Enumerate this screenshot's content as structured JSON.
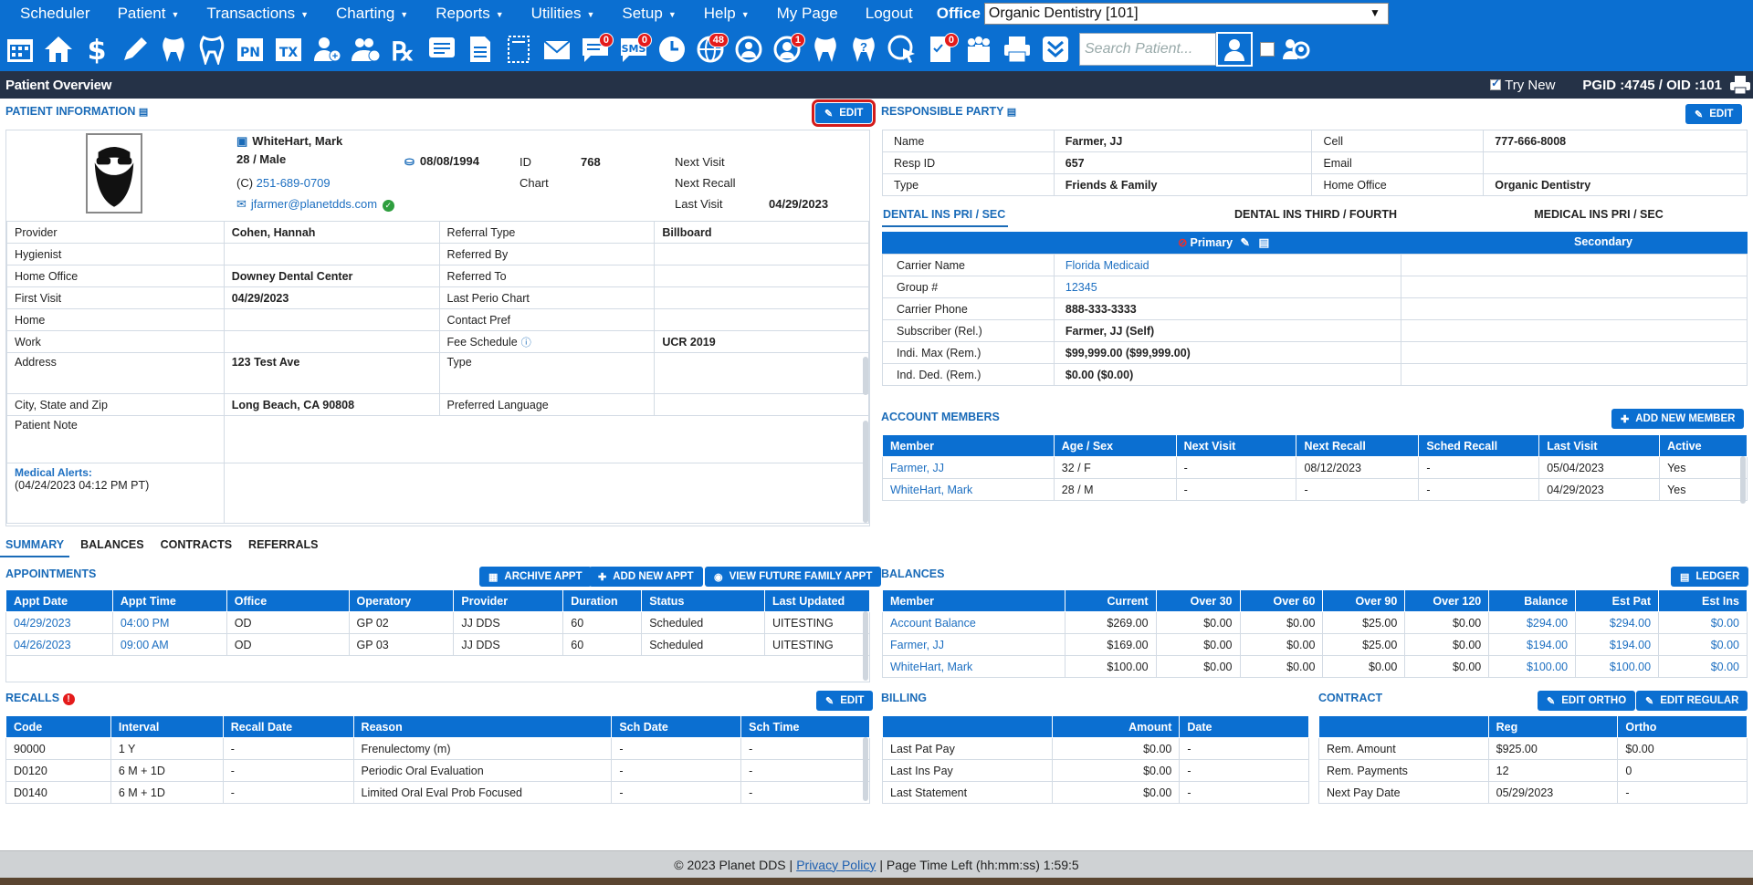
{
  "menu": {
    "items": [
      {
        "label": "Scheduler",
        "caret": false
      },
      {
        "label": "Patient",
        "caret": true
      },
      {
        "label": "Transactions",
        "caret": true
      },
      {
        "label": "Charting",
        "caret": true
      },
      {
        "label": "Reports",
        "caret": true
      },
      {
        "label": "Utilities",
        "caret": true
      },
      {
        "label": "Setup",
        "caret": true
      },
      {
        "label": "Help",
        "caret": true
      },
      {
        "label": "My Page",
        "caret": false
      },
      {
        "label": "Logout",
        "caret": false
      }
    ],
    "office_label": "Office",
    "office_value": "Organic Dentistry [101]"
  },
  "toolbar": {
    "icons": [
      "calendar-icon",
      "home-icon",
      "dollar-icon",
      "pencil-icon",
      "tooth-icon",
      "tooth-outline-icon",
      "pn-icon",
      "tx-icon",
      "add-patient-icon",
      "add-family-icon",
      "rx-icon",
      "notes-icon",
      "document-icon",
      "scan-icon",
      "envelope-icon",
      "message-icon",
      "sms-icon",
      "clock-icon",
      "globe-icon",
      "globe-user-icon",
      "agent-icon",
      "tooth-chart-icon",
      "tooth-question-icon",
      "web-cursor-icon",
      "checklist-icon",
      "family-icon",
      "printer-icon",
      "chevron-down-double-icon"
    ],
    "badges": {
      "message-icon": "0",
      "sms-icon": "0",
      "globe-icon": "48",
      "agent-icon": "1",
      "checklist-icon": "0"
    },
    "search_placeholder": "Search Patient..."
  },
  "titlebar": {
    "title": "Patient Overview",
    "try_new": "Try New",
    "pgid": "PGID :4745 / OID :101"
  },
  "patient_info": {
    "title": "PATIENT INFORMATION",
    "edit": "EDIT",
    "name": "WhiteHart, Mark",
    "age_sex": "28 / Male",
    "dob": "08/08/1994",
    "phone_prefix": "(C)",
    "phone": "251-689-0709",
    "email": "jfarmer@planetdds.com",
    "id_label": "ID",
    "id_value": "768",
    "chart_label": "Chart",
    "next_visit_label": "Next Visit",
    "next_recall_label": "Next Recall",
    "last_visit_label": "Last Visit",
    "last_visit_value": "04/29/2023",
    "rows": [
      [
        "Provider",
        "Cohen, Hannah",
        "Referral Type",
        "Billboard"
      ],
      [
        "Hygienist",
        "",
        "Referred By",
        ""
      ],
      [
        "Home Office",
        "Downey Dental Center",
        "Referred To",
        ""
      ],
      [
        "First Visit",
        "04/29/2023",
        "Last Perio Chart",
        ""
      ],
      [
        "Home",
        "",
        "Contact Pref",
        ""
      ],
      [
        "Work",
        "",
        "Fee Schedule",
        "UCR 2019"
      ],
      [
        "Address",
        "123 Test Ave",
        "Type",
        ""
      ],
      [
        "City, State and Zip",
        "Long Beach, CA 90808",
        "Preferred Language",
        ""
      ]
    ],
    "patient_note_label": "Patient Note",
    "medical_alerts_label": "Medical Alerts:",
    "medical_alerts_date": "(04/24/2023 04:12 PM PT)"
  },
  "responsible_party": {
    "title": "RESPONSIBLE PARTY",
    "edit": "EDIT",
    "rows": [
      [
        "Name",
        "Farmer, JJ",
        "Cell",
        "777-666-8008"
      ],
      [
        "Resp ID",
        "657",
        "Email",
        ""
      ],
      [
        "Type",
        "Friends & Family",
        "Home Office",
        "Organic Dentistry"
      ]
    ]
  },
  "insurance": {
    "tabs": [
      "DENTAL INS PRI / SEC",
      "DENTAL INS THIRD / FOURTH",
      "MEDICAL INS PRI / SEC"
    ],
    "primary_label": "Primary",
    "secondary_label": "Secondary",
    "rows": [
      [
        "Carrier Name",
        "Florida Medicaid"
      ],
      [
        "Group #",
        "12345"
      ],
      [
        "Carrier Phone",
        "888-333-3333"
      ],
      [
        "Subscriber (Rel.)",
        "Farmer, JJ (Self)"
      ],
      [
        "Indi. Max (Rem.)",
        "$99,999.00 ($99,999.00)"
      ],
      [
        "Ind. Ded. (Rem.)",
        "$0.00 ($0.00)"
      ]
    ]
  },
  "account_members": {
    "title": "ACCOUNT MEMBERS",
    "add_button": "ADD NEW MEMBER",
    "headers": [
      "Member",
      "Age / Sex",
      "Next Visit",
      "Next Recall",
      "Sched Recall",
      "Last Visit",
      "Active"
    ],
    "rows": [
      [
        "Farmer, JJ",
        "32 / F",
        "-",
        "08/12/2023",
        "-",
        "05/04/2023",
        "Yes"
      ],
      [
        "WhiteHart, Mark",
        "28 / M",
        "-",
        "-",
        "-",
        "04/29/2023",
        "Yes"
      ]
    ]
  },
  "bottom_tabs": [
    "SUMMARY",
    "BALANCES",
    "CONTRACTS",
    "REFERRALS"
  ],
  "appointments": {
    "title": "APPOINTMENTS",
    "archive": "ARCHIVE APPT",
    "add": "ADD NEW APPT",
    "future": "VIEW FUTURE FAMILY APPT",
    "headers": [
      "Appt Date",
      "Appt Time",
      "Office",
      "Operatory",
      "Provider",
      "Duration",
      "Status",
      "Last Updated"
    ],
    "rows": [
      [
        "04/29/2023",
        "04:00 PM",
        "OD",
        "GP 02",
        "JJ DDS",
        "60",
        "Scheduled",
        "UITESTING"
      ],
      [
        "04/26/2023",
        "09:00 AM",
        "OD",
        "GP 03",
        "JJ DDS",
        "60",
        "Scheduled",
        "UITESTING"
      ]
    ]
  },
  "balances": {
    "title": "BALANCES",
    "ledger": "LEDGER",
    "headers": [
      "Member",
      "Current",
      "Over 30",
      "Over 60",
      "Over 90",
      "Over 120",
      "Balance",
      "Est Pat",
      "Est Ins"
    ],
    "rows": [
      [
        "Account Balance",
        "$269.00",
        "$0.00",
        "$0.00",
        "$25.00",
        "$0.00",
        "$294.00",
        "$294.00",
        "$0.00"
      ],
      [
        "Farmer, JJ",
        "$169.00",
        "$0.00",
        "$0.00",
        "$25.00",
        "$0.00",
        "$194.00",
        "$194.00",
        "$0.00"
      ],
      [
        "WhiteHart, Mark",
        "$100.00",
        "$0.00",
        "$0.00",
        "$0.00",
        "$0.00",
        "$100.00",
        "$100.00",
        "$0.00"
      ]
    ]
  },
  "recalls": {
    "title": "RECALLS",
    "edit": "EDIT",
    "headers": [
      "Code",
      "Interval",
      "Recall Date",
      "Reason",
      "Sch Date",
      "Sch Time"
    ],
    "rows": [
      [
        "90000",
        "1 Y",
        "-",
        "Frenulectomy (m)",
        "-",
        "-"
      ],
      [
        "D0120",
        "6 M + 1D",
        "-",
        "Periodic Oral Evaluation",
        "-",
        "-"
      ],
      [
        "D0140",
        "6 M + 1D",
        "-",
        "Limited Oral Eval Prob Focused",
        "-",
        "-"
      ]
    ]
  },
  "billing": {
    "title": "BILLING",
    "headers": [
      "",
      "Amount",
      "Date"
    ],
    "rows": [
      [
        "Last Pat Pay",
        "$0.00",
        "-"
      ],
      [
        "Last Ins Pay",
        "$0.00",
        "-"
      ],
      [
        "Last Statement",
        "$0.00",
        "-"
      ]
    ]
  },
  "contract": {
    "title": "CONTRACT",
    "edit_ortho": "EDIT ORTHO",
    "edit_regular": "EDIT REGULAR",
    "headers": [
      "",
      "Reg",
      "Ortho"
    ],
    "rows": [
      [
        "Rem. Amount",
        "$925.00",
        "$0.00"
      ],
      [
        "Rem. Payments",
        "12",
        "0"
      ],
      [
        "Next Pay Date",
        "05/29/2023",
        "-"
      ]
    ]
  },
  "footer": {
    "copyright": "© 2023 Planet DDS |",
    "privacy": "Privacy Policy",
    "page_time": "|  Page Time Left (hh:mm:ss) 1:59:5"
  }
}
